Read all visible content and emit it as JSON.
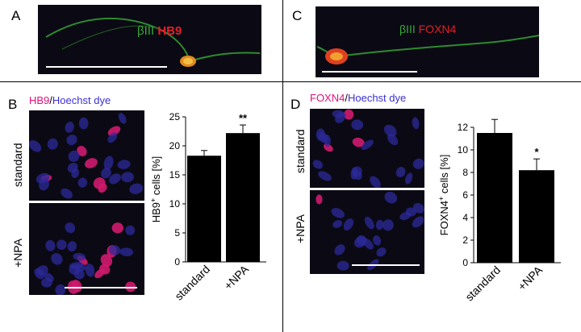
{
  "panels": {
    "A": {
      "letter": "A",
      "label1": "βIII",
      "label2": "HB9",
      "color1": "#3aa83a",
      "color2": "#e0202a"
    },
    "C": {
      "letter": "C",
      "label1": "βIII",
      "label2": "FOXN4",
      "color1": "#3aa83a",
      "color2": "#e0202a"
    },
    "B": {
      "letter": "B",
      "stain1": "HB9",
      "sep": "/",
      "stain2": "Hoechst dye",
      "row_top": "standard",
      "row_bottom": "+NPA",
      "color1": "#e0107a",
      "color2": "#3a30d0"
    },
    "D": {
      "letter": "D",
      "stain1": "FOXN4",
      "sep": "/",
      "stain2": "Hoechst dye",
      "row_top": "standard",
      "row_bottom": "+NPA",
      "color1": "#e0107a",
      "color2": "#3a30d0"
    }
  },
  "chart_data": [
    {
      "type": "bar",
      "categories": [
        "standard",
        "+NPA"
      ],
      "values": [
        18.3,
        22.2
      ],
      "errors": [
        0.9,
        1.4
      ],
      "annotations": [
        "",
        "**"
      ],
      "ylabel_pre": "HB9",
      "ylabel_sup": "+",
      "ylabel_post": " cells [%]",
      "ylim": [
        0,
        25
      ],
      "yticks": [
        "0",
        "5",
        "10",
        "15",
        "20",
        "25"
      ]
    },
    {
      "type": "bar",
      "categories": [
        "standard",
        "+NPA"
      ],
      "values": [
        11.5,
        8.2
      ],
      "errors": [
        1.2,
        1.0
      ],
      "annotations": [
        "",
        "*"
      ],
      "ylabel_pre": "FOXN4",
      "ylabel_sup": "+",
      "ylabel_post": " cells [%]",
      "ylim": [
        0,
        12
      ],
      "yticks": [
        "0",
        "2",
        "4",
        "6",
        "8",
        "10",
        "12"
      ]
    }
  ]
}
